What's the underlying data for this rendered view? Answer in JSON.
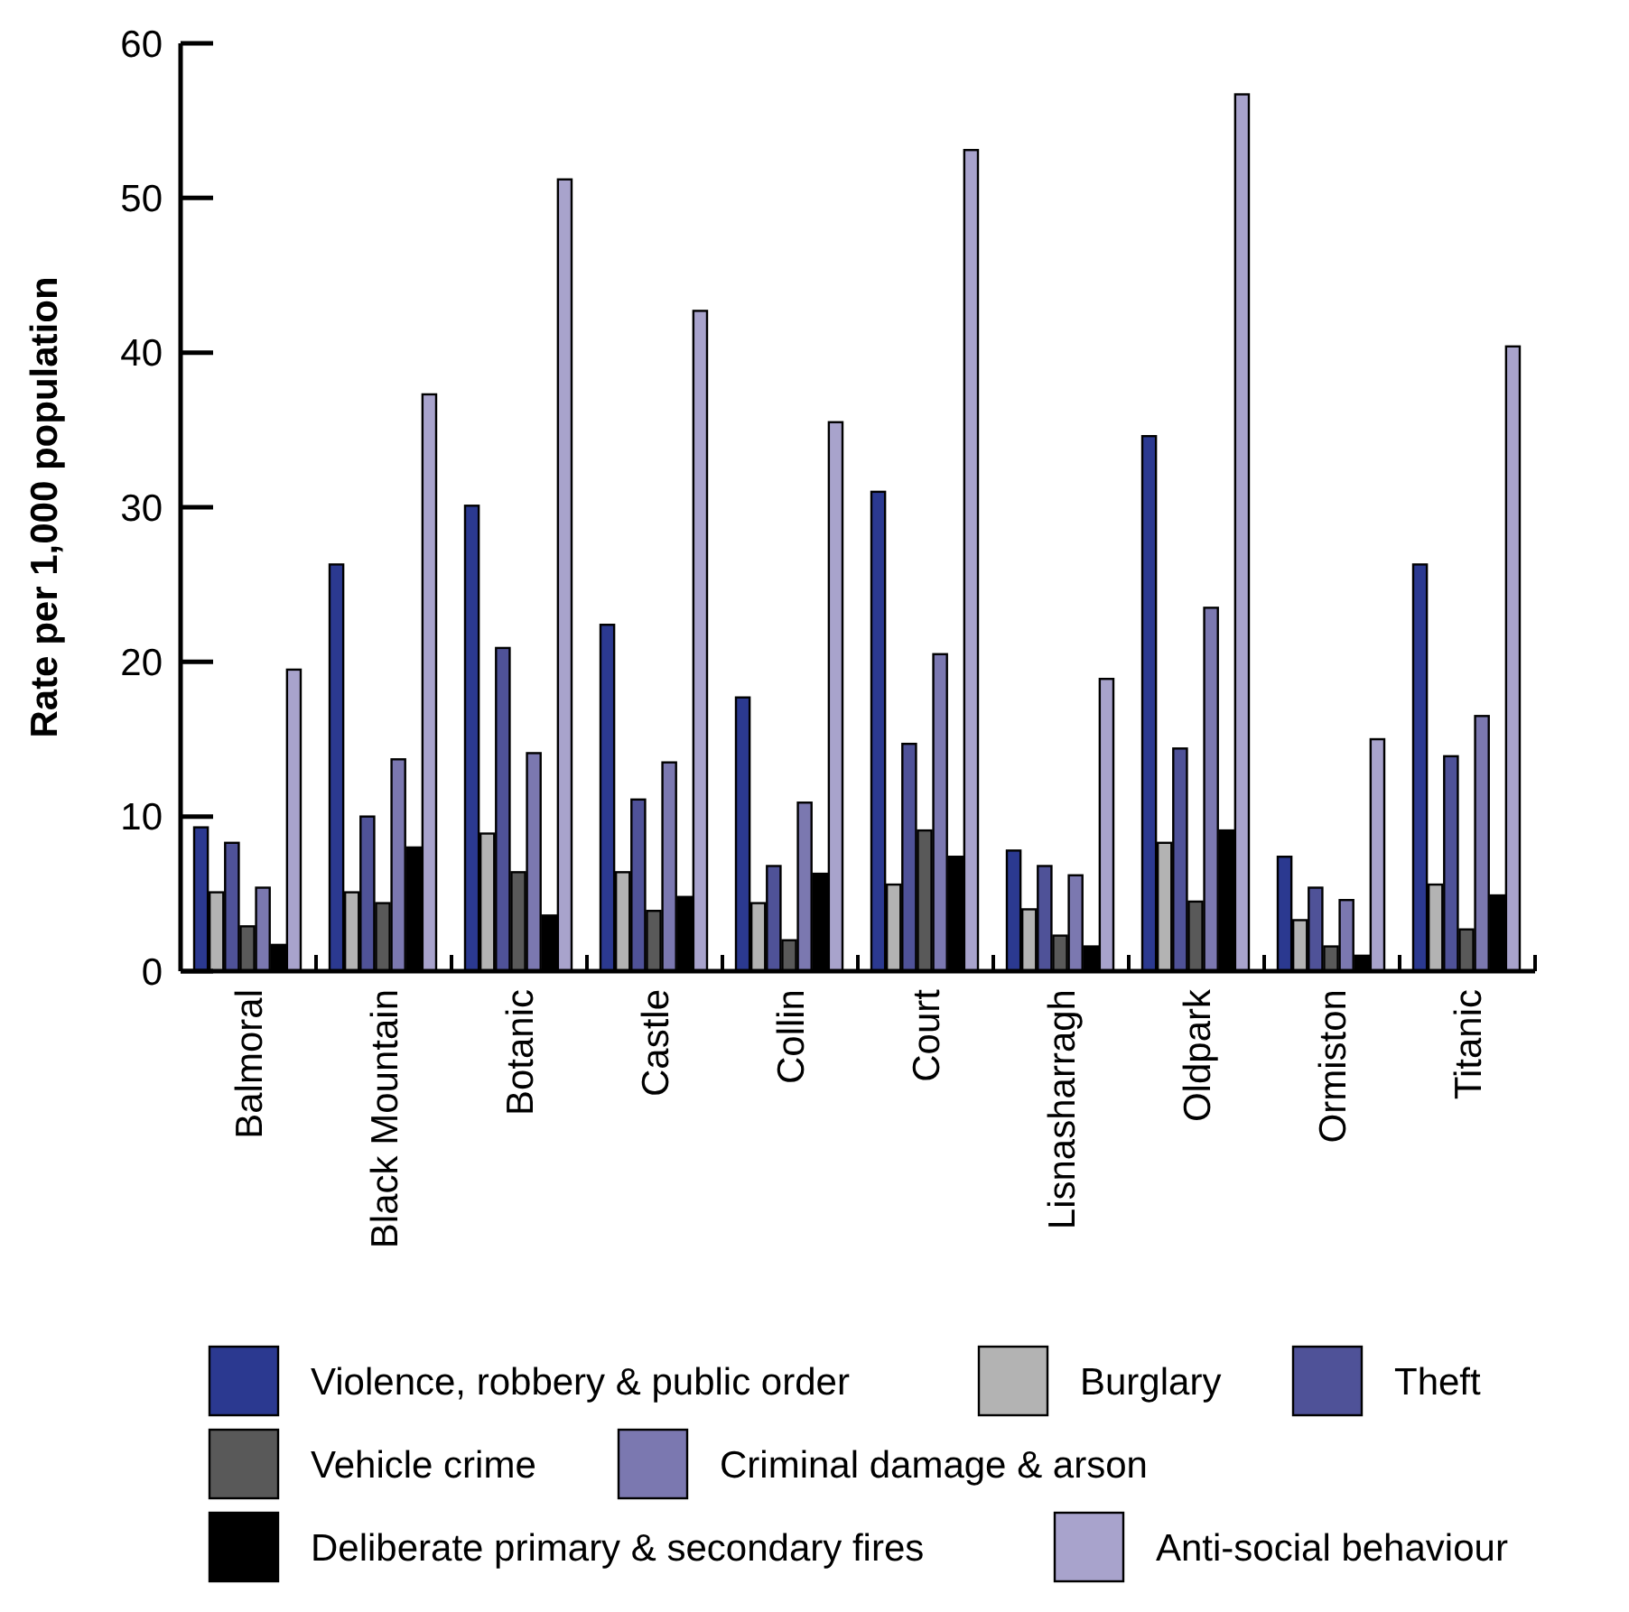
{
  "chart_data": {
    "type": "bar",
    "ylabel": "Rate per 1,000 population",
    "categories": [
      "Balmoral",
      "Black Mountain",
      "Botanic",
      "Castle",
      "Collin",
      "Court",
      "Lisnasharragh",
      "Oldpark",
      "Ormiston",
      "Titanic"
    ],
    "series": [
      {
        "name": "Violence, robbery & public order",
        "color": "#2b3990",
        "values": [
          9.3,
          26.3,
          30.1,
          22.4,
          17.7,
          31.0,
          7.8,
          34.6,
          7.4,
          26.3
        ]
      },
      {
        "name": "Burglary",
        "color": "#b3b3b3",
        "values": [
          5.1,
          5.1,
          8.9,
          6.4,
          4.4,
          5.6,
          4.0,
          8.3,
          3.3,
          5.6
        ]
      },
      {
        "name": "Theft",
        "color": "#4f5298",
        "values": [
          8.3,
          10.0,
          20.9,
          11.1,
          6.8,
          14.7,
          6.8,
          14.4,
          5.4,
          13.9
        ]
      },
      {
        "name": "Vehicle crime",
        "color": "#595959",
        "values": [
          2.9,
          4.4,
          6.4,
          3.9,
          2.0,
          9.1,
          2.3,
          4.5,
          1.6,
          2.7
        ]
      },
      {
        "name": "Criminal damage & arson",
        "color": "#7b78b0",
        "values": [
          5.4,
          13.7,
          14.1,
          13.5,
          10.9,
          20.5,
          6.2,
          23.5,
          4.6,
          16.5
        ]
      },
      {
        "name": "Deliberate primary & secondary fires",
        "color": "#000000",
        "values": [
          1.7,
          8.0,
          3.6,
          4.8,
          6.3,
          7.4,
          1.6,
          9.1,
          1.0,
          4.9
        ]
      },
      {
        "name": "Anti-social behaviour",
        "color": "#a8a3cc",
        "values": [
          19.5,
          37.3,
          51.2,
          42.7,
          35.5,
          53.1,
          18.9,
          56.7,
          15.0,
          40.4
        ]
      }
    ],
    "ylim": [
      0,
      60
    ],
    "yticks": [
      0,
      10,
      20,
      30,
      40,
      50,
      60
    ],
    "legend": "bottom"
  }
}
